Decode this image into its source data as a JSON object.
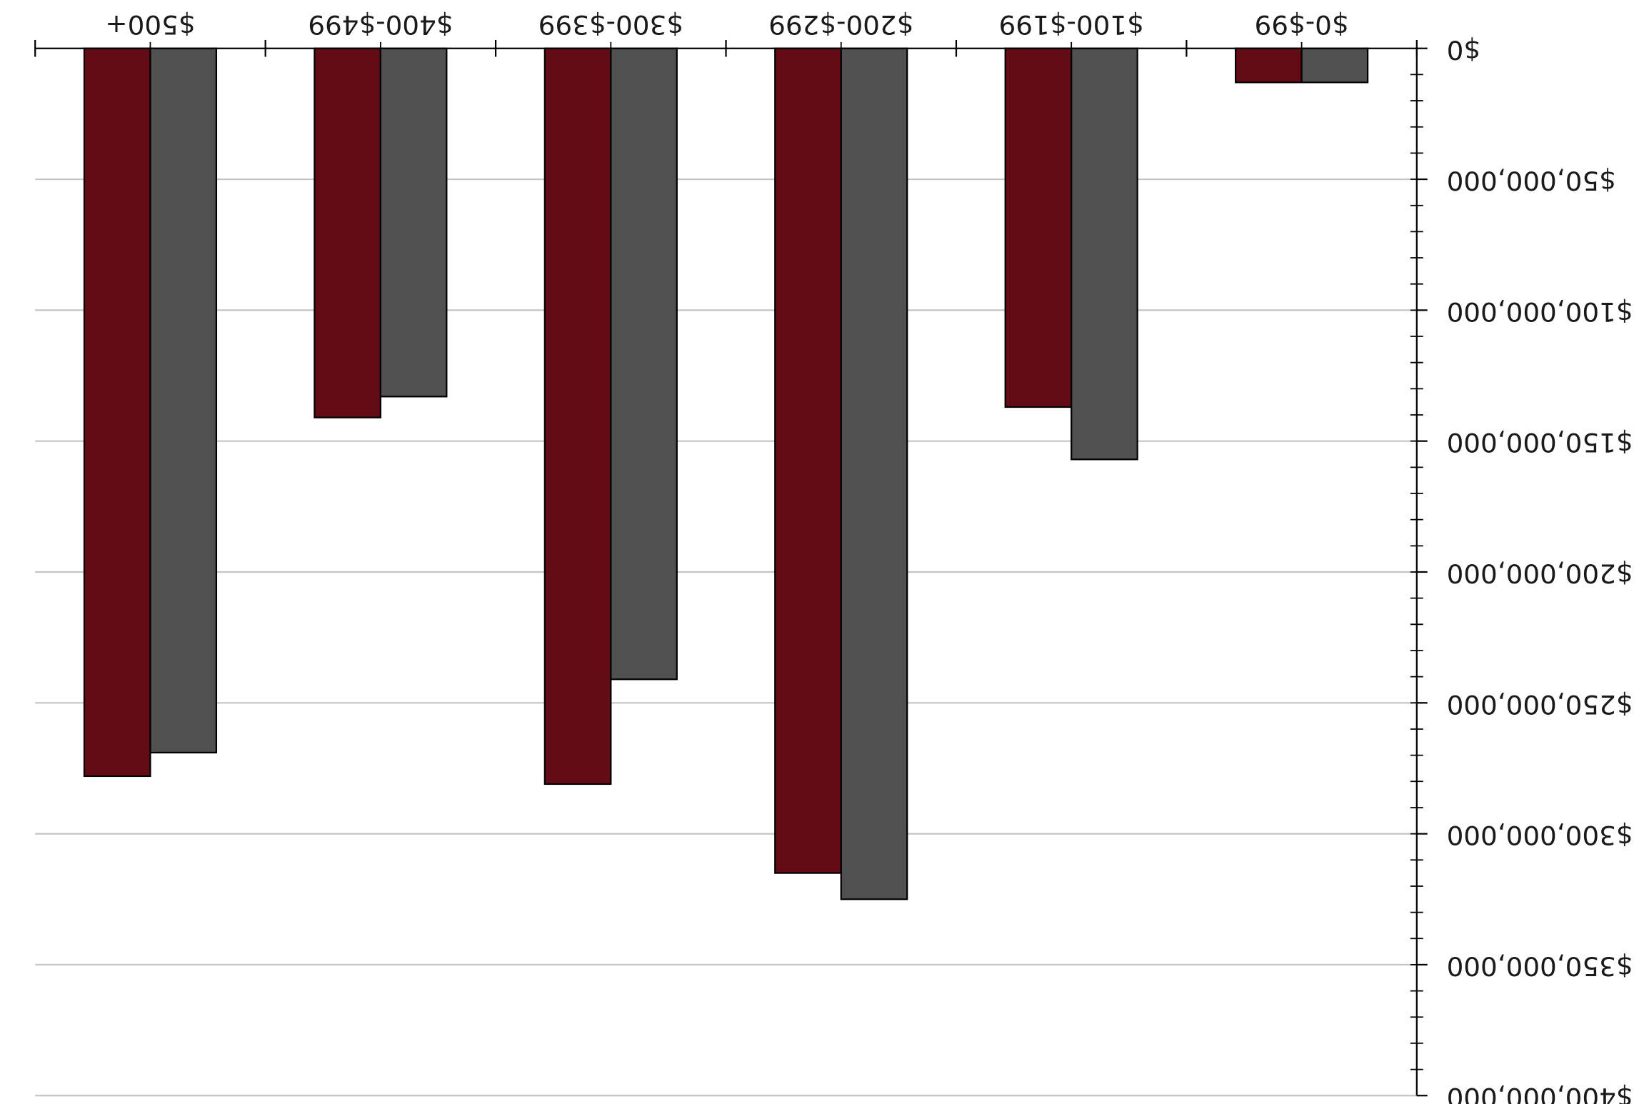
{
  "chart_data": {
    "type": "bar",
    "orientation": "rotated-180",
    "categories": [
      "$500+",
      "$400-$499",
      "$300-$399",
      "$200-$299",
      "$100-$199",
      "$0-$99"
    ],
    "series": [
      {
        "values": [
          278000000,
          141000000,
          281000000,
          315000000,
          137000000,
          13000000
        ],
        "color": "#640c16"
      },
      {
        "values": [
          269000000,
          133000000,
          241000000,
          325000000,
          157000000,
          13000000
        ],
        "color": "#505050"
      }
    ],
    "ylim": [
      0,
      400000000
    ],
    "yticks": [
      {
        "value": 0,
        "label": "$0"
      },
      {
        "value": 50000000,
        "label": "$50,000,000"
      },
      {
        "value": 100000000,
        "label": "$100,000,000"
      },
      {
        "value": 150000000,
        "label": "$150,000,000"
      },
      {
        "value": 200000000,
        "label": "$200,000,000"
      },
      {
        "value": 250000000,
        "label": "$250,000,000"
      },
      {
        "value": 300000000,
        "label": "$300,000,000"
      },
      {
        "value": 350000000,
        "label": "$350,000,000"
      },
      {
        "value": 400000000,
        "label": "$400,000,000"
      }
    ],
    "grid": true,
    "title": "",
    "xlabel": "",
    "ylabel": "",
    "legend": "none"
  }
}
